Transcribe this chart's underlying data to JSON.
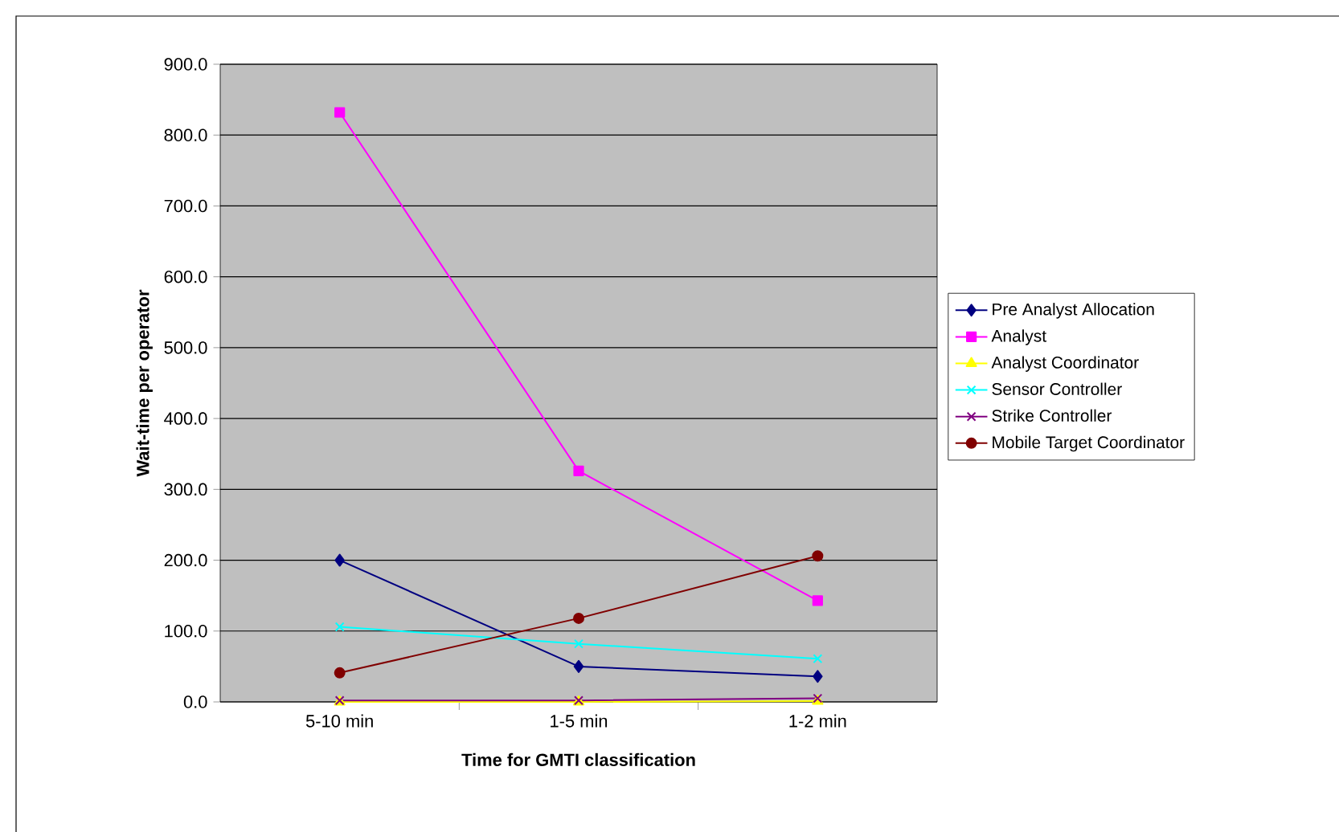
{
  "chart_data": {
    "type": "line",
    "xlabel": "Time for GMTI classification",
    "ylabel": "Wait-time per operator",
    "categories": [
      "5-10 min",
      "1-5 min",
      "1-2 min"
    ],
    "series": [
      {
        "name": "Pre Analyst Allocation",
        "color": "#000080",
        "marker": "diamond",
        "values": [
          200,
          50,
          36
        ]
      },
      {
        "name": "Analyst",
        "color": "#ff00ff",
        "marker": "square",
        "values": [
          832,
          326,
          143
        ]
      },
      {
        "name": "Analyst Coordinator",
        "color": "#ffff00",
        "marker": "triangle",
        "values": [
          0,
          0,
          1
        ]
      },
      {
        "name": "Sensor Controller",
        "color": "#00ffff",
        "marker": "cross",
        "values": [
          106,
          82,
          61
        ]
      },
      {
        "name": "Strike Controller",
        "color": "#800080",
        "marker": "cross",
        "values": [
          2,
          2,
          5
        ]
      },
      {
        "name": "Mobile Target Coordinator",
        "color": "#800000",
        "marker": "circle",
        "values": [
          41,
          118,
          206
        ]
      }
    ],
    "ylim": [
      0,
      900
    ],
    "yticks": [
      {
        "value": 0,
        "label": "0.0"
      },
      {
        "value": 100,
        "label": "100.0"
      },
      {
        "value": 200,
        "label": "200.0"
      },
      {
        "value": 300,
        "label": "300.0"
      },
      {
        "value": 400,
        "label": "400.0"
      },
      {
        "value": 500,
        "label": "500.0"
      },
      {
        "value": 600,
        "label": "600.0"
      },
      {
        "value": 700,
        "label": "700.0"
      },
      {
        "value": 800,
        "label": "800.0"
      },
      {
        "value": 900,
        "label": "900.0"
      }
    ],
    "grid": "y",
    "legend": "right"
  }
}
